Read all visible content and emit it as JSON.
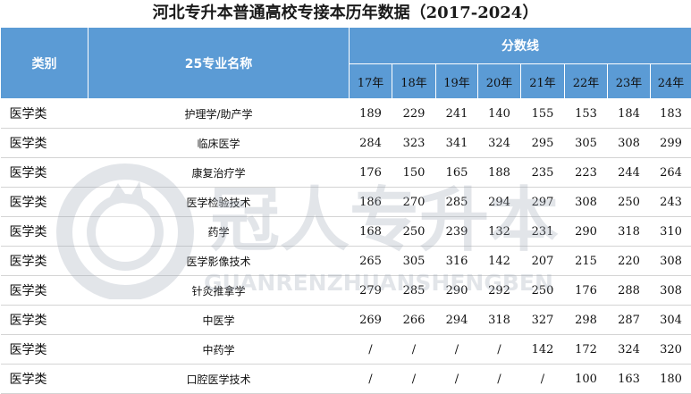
{
  "title": "河北专升本普通高校专接本历年数据（2017-2024）",
  "header": {
    "category": "类别",
    "major": "25专业名称",
    "score_group": "分数线",
    "years": [
      "17年",
      "18年",
      "19年",
      "20年",
      "21年",
      "22年",
      "23年",
      "24年"
    ]
  },
  "rows": [
    {
      "category": "医学类",
      "major": "护理学/助产学",
      "scores": [
        "189",
        "229",
        "241",
        "140",
        "155",
        "153",
        "184",
        "183"
      ]
    },
    {
      "category": "医学类",
      "major": "临床医学",
      "scores": [
        "284",
        "323",
        "341",
        "324",
        "295",
        "305",
        "308",
        "299"
      ]
    },
    {
      "category": "医学类",
      "major": "康复治疗学",
      "scores": [
        "176",
        "150",
        "165",
        "188",
        "235",
        "223",
        "244",
        "264"
      ]
    },
    {
      "category": "医学类",
      "major": "医学检验技术",
      "scores": [
        "186",
        "270",
        "285",
        "294",
        "297",
        "308",
        "250",
        "243"
      ]
    },
    {
      "category": "医学类",
      "major": "药学",
      "scores": [
        "168",
        "250",
        "239",
        "132",
        "231",
        "290",
        "318",
        "310"
      ]
    },
    {
      "category": "医学类",
      "major": "医学影像技术",
      "scores": [
        "265",
        "305",
        "316",
        "142",
        "207",
        "215",
        "220",
        "308"
      ]
    },
    {
      "category": "医学类",
      "major": "针灸推拿学",
      "scores": [
        "279",
        "285",
        "290",
        "292",
        "250",
        "176",
        "288",
        "308"
      ]
    },
    {
      "category": "医学类",
      "major": "中医学",
      "scores": [
        "269",
        "266",
        "294",
        "318",
        "327",
        "298",
        "287",
        "304"
      ]
    },
    {
      "category": "医学类",
      "major": "中药学",
      "scores": [
        "/",
        "/",
        "/",
        "/",
        "142",
        "172",
        "324",
        "320"
      ]
    },
    {
      "category": "医学类",
      "major": "口腔医学技术",
      "scores": [
        "/",
        "/",
        "/",
        "/",
        "/",
        "100",
        "163",
        "180"
      ]
    }
  ],
  "watermark": {
    "brand_cn": "冠人专升本",
    "brand_en": "GUANRENZHUANSHENGBEN",
    "color": "#9aa4b3"
  },
  "colors": {
    "header_bg": "#5b9bd5",
    "row_divider": "#d4d4d4"
  }
}
